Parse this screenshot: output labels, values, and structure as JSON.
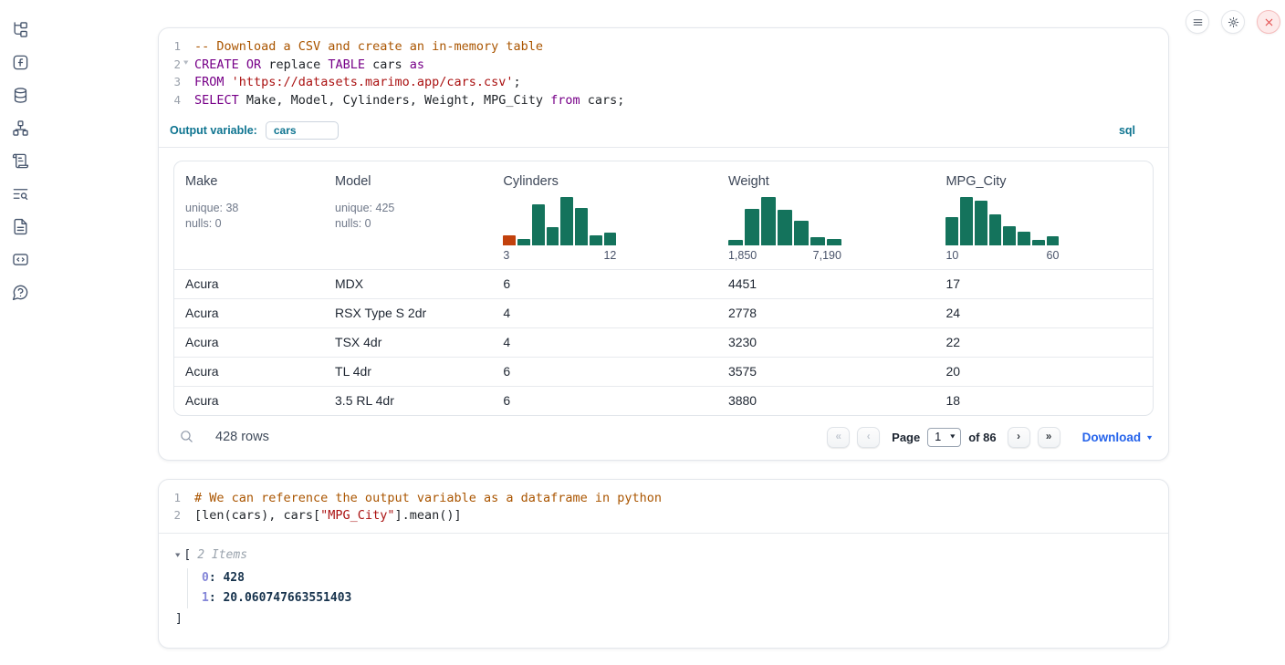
{
  "sidebar": {
    "items": [
      {
        "name": "file-tree"
      },
      {
        "name": "functions"
      },
      {
        "name": "datasources"
      },
      {
        "name": "dependency-graph"
      },
      {
        "name": "scratchpad"
      },
      {
        "name": "logs-search"
      },
      {
        "name": "documentation"
      },
      {
        "name": "snippets"
      },
      {
        "name": "help"
      }
    ]
  },
  "topbar": {
    "buttons": [
      {
        "name": "menu"
      },
      {
        "name": "settings"
      },
      {
        "name": "close"
      }
    ]
  },
  "sql_cell": {
    "lines": [
      {
        "num": "1",
        "tokens": [
          {
            "c": "com",
            "t": "-- Download a CSV and create an in-memory table"
          }
        ]
      },
      {
        "num": "2",
        "fold": true,
        "tokens": [
          {
            "c": "kw",
            "t": "CREATE"
          },
          {
            "c": "pl",
            "t": " "
          },
          {
            "c": "kw",
            "t": "OR"
          },
          {
            "c": "pl",
            "t": " replace "
          },
          {
            "c": "kw",
            "t": "TABLE"
          },
          {
            "c": "pl",
            "t": " cars "
          },
          {
            "c": "kw",
            "t": "as"
          }
        ]
      },
      {
        "num": "3",
        "tokens": [
          {
            "c": "kw",
            "t": "FROM"
          },
          {
            "c": "pl",
            "t": " "
          },
          {
            "c": "str",
            "t": "'https://datasets.marimo.app/cars.csv'"
          },
          {
            "c": "pl",
            "t": ";"
          }
        ]
      },
      {
        "num": "4",
        "tokens": [
          {
            "c": "kw",
            "t": "SELECT"
          },
          {
            "c": "pl",
            "t": " Make, Model, Cylinders, Weight, MPG_City "
          },
          {
            "c": "kw",
            "t": "from"
          },
          {
            "c": "pl",
            "t": " cars;"
          }
        ]
      }
    ],
    "output_variable_label": "Output variable:",
    "output_variable_value": "cars",
    "language_badge": "sql"
  },
  "table": {
    "columns": [
      {
        "name": "Make",
        "stats": [
          "unique: 38",
          "nulls: 0"
        ]
      },
      {
        "name": "Model",
        "stats": [
          "unique: 425",
          "nulls: 0"
        ]
      },
      {
        "name": "Cylinders",
        "hist": {
          "min_label": "3",
          "max_label": "12",
          "bars": [
            {
              "v": 0.2,
              "c": "#c2410c"
            },
            {
              "v": 0.13
            },
            {
              "v": 0.85
            },
            {
              "v": 0.37
            },
            {
              "v": 1.0
            },
            {
              "v": 0.78
            },
            {
              "v": 0.2
            },
            {
              "v": 0.27
            }
          ]
        }
      },
      {
        "name": "Weight",
        "hist": {
          "min_label": "1,850",
          "max_label": "7,190",
          "bars": [
            {
              "v": 0.12
            },
            {
              "v": 0.75
            },
            {
              "v": 1.0
            },
            {
              "v": 0.74
            },
            {
              "v": 0.5
            },
            {
              "v": 0.17
            },
            {
              "v": 0.14
            }
          ]
        }
      },
      {
        "name": "MPG_City",
        "hist": {
          "min_label": "10",
          "max_label": "60",
          "bars": [
            {
              "v": 0.58
            },
            {
              "v": 1.0
            },
            {
              "v": 0.92
            },
            {
              "v": 0.65
            },
            {
              "v": 0.4
            },
            {
              "v": 0.28
            },
            {
              "v": 0.11
            },
            {
              "v": 0.19
            }
          ]
        }
      }
    ],
    "rows": [
      [
        "Acura",
        "MDX",
        "6",
        "4451",
        "17"
      ],
      [
        "Acura",
        "RSX Type S 2dr",
        "4",
        "2778",
        "24"
      ],
      [
        "Acura",
        "TSX 4dr",
        "4",
        "3230",
        "22"
      ],
      [
        "Acura",
        "TL 4dr",
        "6",
        "3575",
        "20"
      ],
      [
        "Acura",
        "3.5 RL 4dr",
        "6",
        "3880",
        "18"
      ]
    ],
    "row_count": "428 rows",
    "pagination": {
      "page_label": "Page",
      "page_value": "1",
      "of_label": "of 86",
      "download_label": "Download"
    }
  },
  "python_cell": {
    "lines": [
      {
        "num": "1",
        "tokens": [
          {
            "c": "com",
            "t": "# We can reference the output variable as a dataframe in python"
          }
        ]
      },
      {
        "num": "2",
        "tokens": [
          {
            "c": "pl",
            "t": "[len(cars), cars["
          },
          {
            "c": "str",
            "t": "\"MPG_City\""
          },
          {
            "c": "pl",
            "t": "].mean()]"
          }
        ]
      }
    ]
  },
  "output_list": {
    "open_bracket": "[",
    "items_label": "2 Items",
    "entries": [
      {
        "key": "0",
        "value": "428"
      },
      {
        "key": "1",
        "value": "20.060747663551403"
      }
    ],
    "close_bracket": "]"
  },
  "colors": {
    "hist_green": "#14735c",
    "hist_orange": "#c2410c",
    "accent_teal": "#0e7490",
    "link_blue": "#2563eb"
  }
}
